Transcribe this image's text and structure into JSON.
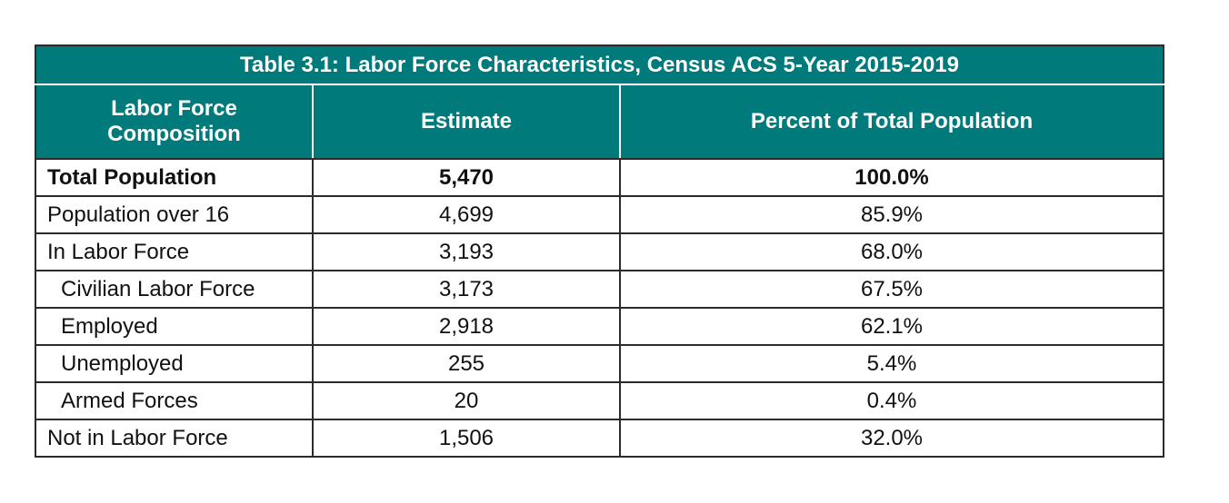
{
  "table": {
    "title": "Table 3.1: Labor Force Characteristics, Census ACS 5-Year 2015-2019",
    "headers": {
      "composition": "Labor Force Composition",
      "estimate": "Estimate",
      "percent": "Percent of Total Population"
    },
    "header_color": "#007a7a",
    "rows": [
      {
        "label": "Total Population",
        "estimate": "5,470",
        "percent": "100.0%"
      },
      {
        "label": "Population over 16",
        "estimate": "4,699",
        "percent": "85.9%"
      },
      {
        "label": "In Labor Force",
        "estimate": "3,193",
        "percent": "68.0%"
      },
      {
        "label": "Civilian Labor Force",
        "estimate": "3,173",
        "percent": "67.5%"
      },
      {
        "label": "Employed",
        "estimate": "2,918",
        "percent": "62.1%"
      },
      {
        "label": "Unemployed",
        "estimate": "255",
        "percent": "5.4%"
      },
      {
        "label": "Armed Forces",
        "estimate": "20",
        "percent": "0.4%"
      },
      {
        "label": "Not in Labor Force",
        "estimate": "1,506",
        "percent": "32.0%"
      }
    ]
  }
}
